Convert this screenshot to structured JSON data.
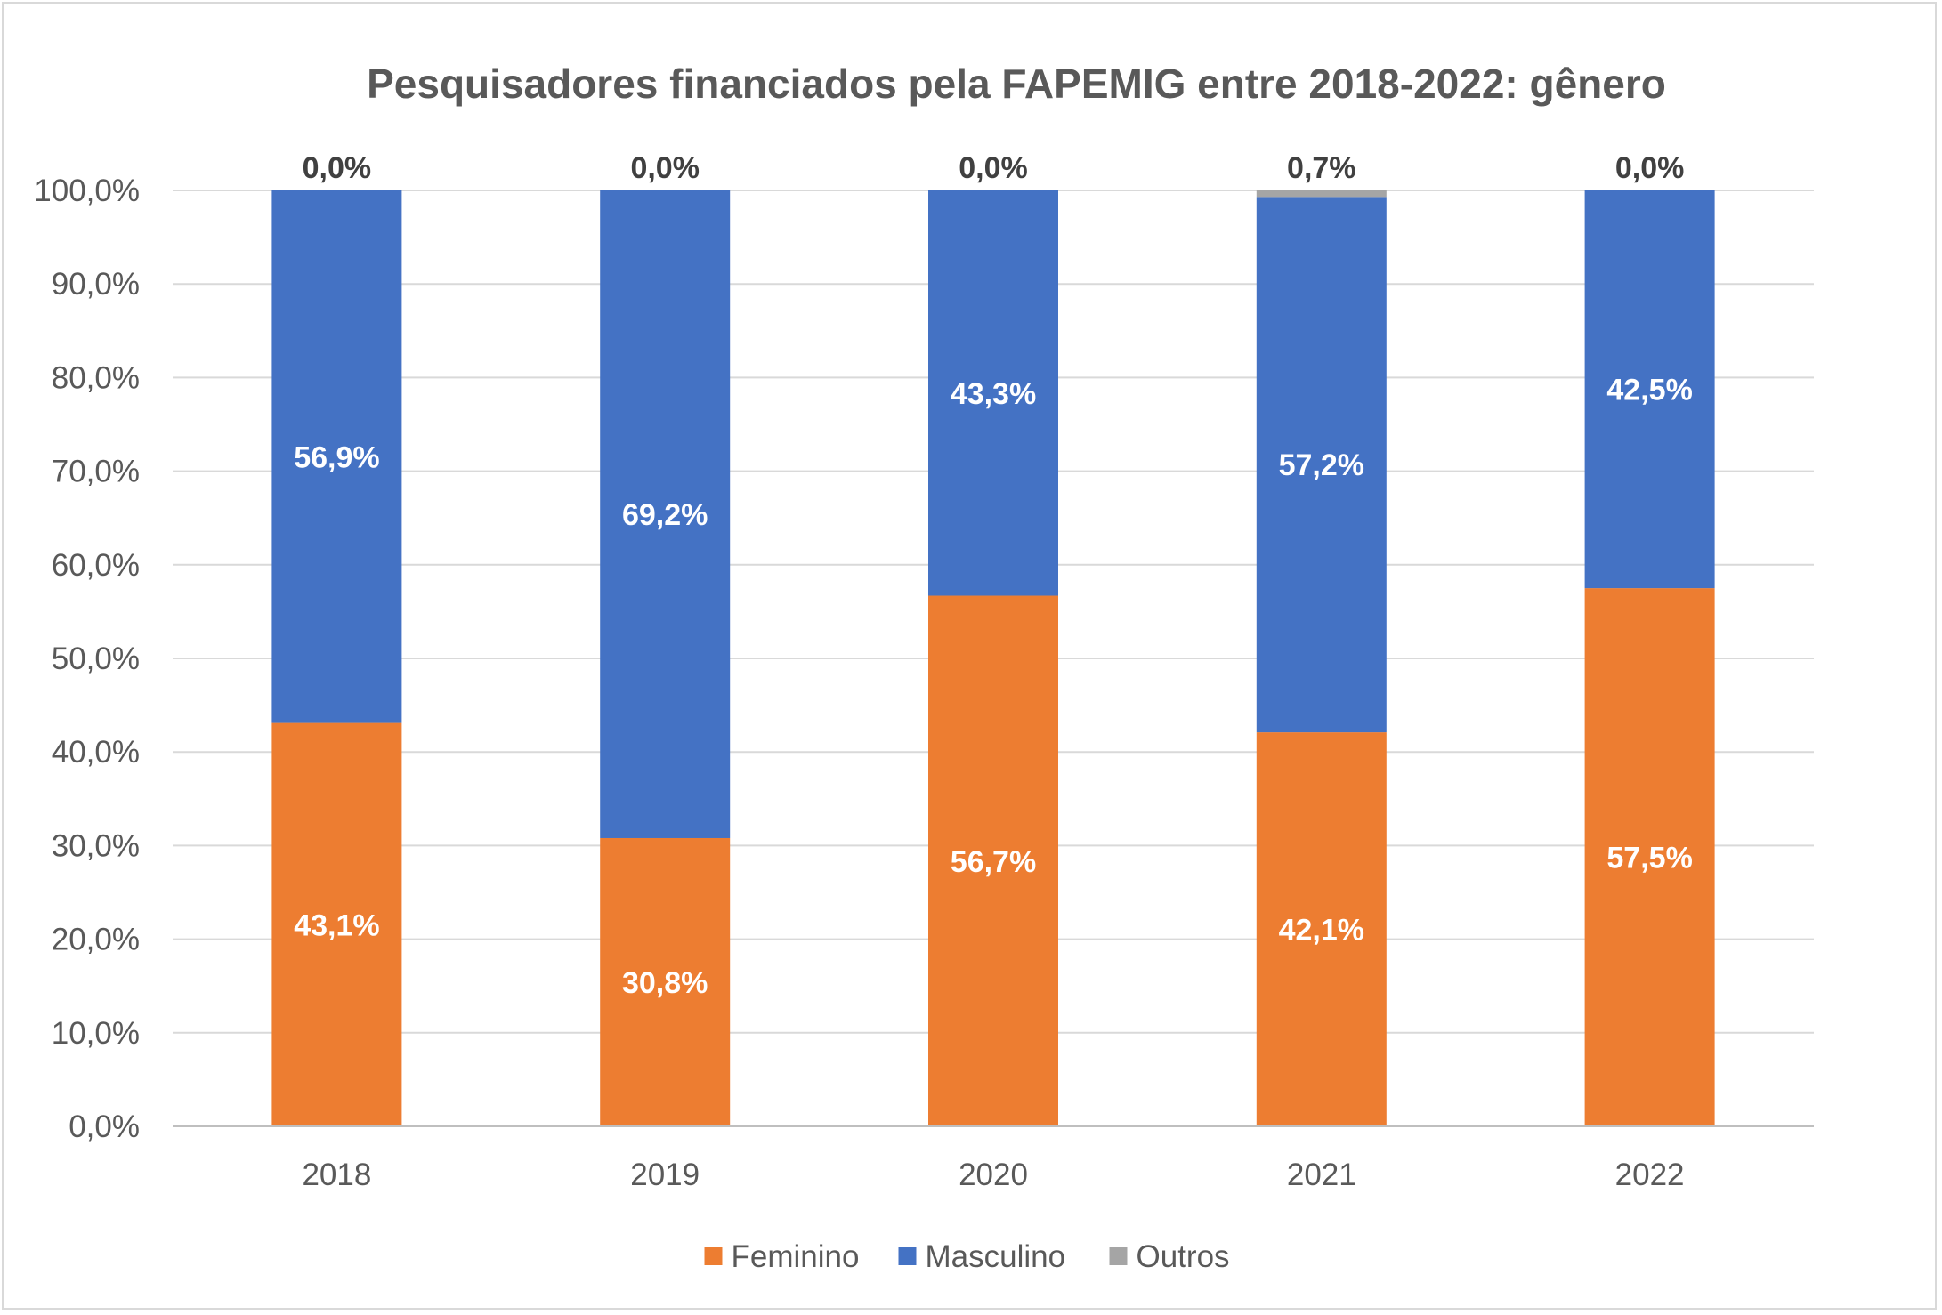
{
  "chart_data": {
    "type": "bar",
    "stacked": true,
    "title": "Pesquisadores financiados pela FAPEMIG entre 2018-2022: gênero",
    "categories": [
      "2018",
      "2019",
      "2020",
      "2021",
      "2022"
    ],
    "series": [
      {
        "name": "Feminino",
        "color": "#ed7d31",
        "values": [
          43.1,
          30.8,
          56.7,
          42.1,
          57.5
        ],
        "labels": [
          "43,1%",
          "30,8%",
          "56,7%",
          "42,1%",
          "57,5%"
        ]
      },
      {
        "name": "Masculino",
        "color": "#4472c4",
        "values": [
          56.9,
          69.2,
          43.3,
          57.2,
          42.5
        ],
        "labels": [
          "56,9%",
          "69,2%",
          "43,3%",
          "57,2%",
          "42,5%"
        ]
      },
      {
        "name": "Outros",
        "color": "#a5a5a5",
        "values": [
          0.0,
          0.0,
          0.0,
          0.7,
          0.0
        ],
        "labels": [
          "0,0%",
          "0,0%",
          "0,0%",
          "0,7%",
          "0,0%"
        ]
      }
    ],
    "ylim": [
      0,
      100
    ],
    "yticks": [
      "0,0%",
      "10,0%",
      "20,0%",
      "30,0%",
      "40,0%",
      "50,0%",
      "60,0%",
      "70,0%",
      "80,0%",
      "90,0%",
      "100,0%"
    ],
    "xlabel": "",
    "ylabel": "",
    "grid": true,
    "legend_position": "bottom"
  }
}
